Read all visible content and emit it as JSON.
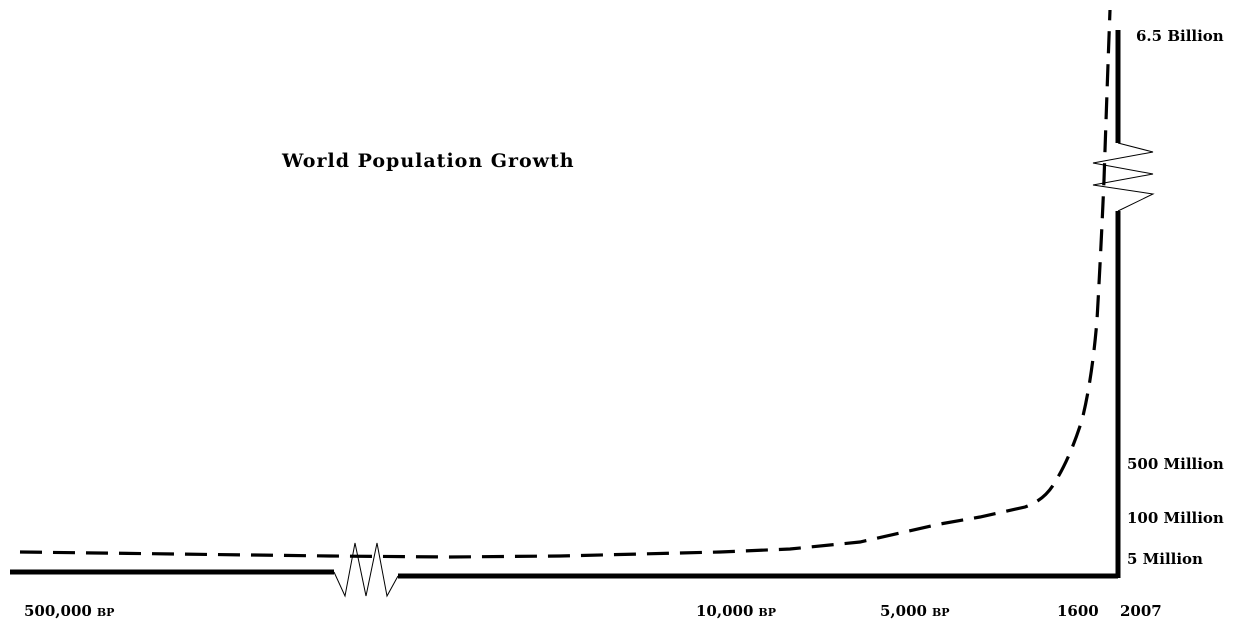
{
  "chart_data": {
    "type": "line",
    "title": "World Population Growth",
    "xlabel": "",
    "ylabel": "",
    "x_tick_labels": [
      {
        "value": "500,000",
        "suffix": "BP"
      },
      {
        "value": "10,000",
        "suffix": "BP"
      },
      {
        "value": "5,000",
        "suffix": "BP"
      },
      {
        "value": "1600",
        "suffix": ""
      },
      {
        "value": "2007",
        "suffix": ""
      }
    ],
    "y_tick_labels": [
      "6.5 Billion",
      "500 Million",
      "100 Million",
      "5 Million"
    ],
    "x_axis_break": "between 500,000 BP and 10,000 BP",
    "y_axis_break": "between 500 Million and 6.5 Billion",
    "grid": false,
    "legend": "none",
    "line_style": "dashed",
    "colors": {
      "line": "#000000",
      "axis": "#000000"
    },
    "series": [
      {
        "points": [
          {
            "year": "500,000 BP",
            "population": "≈1 Million"
          },
          {
            "year": "10,000 BP",
            "population": "≈4 Million"
          },
          {
            "year": "5,000 BP",
            "population": "≈15 Million"
          },
          {
            "year": "1600",
            "population": "≈500 Million"
          },
          {
            "year": "2007",
            "population": "6.5 Billion"
          }
        ]
      }
    ]
  }
}
